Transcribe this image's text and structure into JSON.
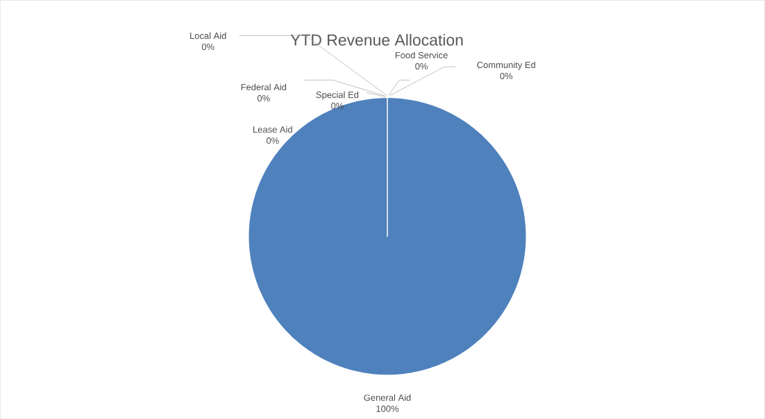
{
  "chart_data": {
    "type": "pie",
    "title": "YTD Revenue Allocation",
    "categories": [
      "Food Service",
      "Community Ed",
      "General Aid",
      "Lease Aid",
      "Special Ed",
      "Federal Aid",
      "Local Aid"
    ],
    "values": [
      0,
      0,
      100,
      0,
      0,
      0,
      0
    ],
    "colors": [
      "#9bbb59",
      "#8064a2",
      "#4f81bd",
      "#4bacc6",
      "#f79646",
      "#c0504d",
      "#2c4d75"
    ],
    "value_labels": [
      "0%",
      "0%",
      "100%",
      "0%",
      "0%",
      "0%",
      "0%"
    ]
  }
}
